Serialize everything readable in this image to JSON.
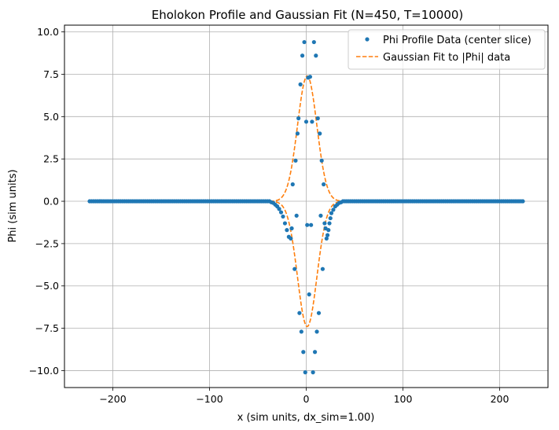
{
  "chart_data": {
    "type": "scatter",
    "title": "Eholokon Profile and Gaussian Fit (N=450, T=10000)",
    "xlabel": "x (sim units, dx_sim=1.00)",
    "ylabel": "Phi (sim units)",
    "xlim": [
      -250,
      250
    ],
    "ylim": [
      -11,
      10.4
    ],
    "xticks": [
      -200,
      -100,
      0,
      100,
      200
    ],
    "yticks": [
      -10.0,
      -7.5,
      -5.0,
      -2.5,
      0.0,
      2.5,
      5.0,
      7.5,
      10.0
    ],
    "grid": true,
    "legend_position": "upper-right",
    "colors": {
      "data": "#1f77b4",
      "fit": "#ff7f0e",
      "grid": "#b0b0b0"
    },
    "series": [
      {
        "name": "Phi Profile Data (center slice)",
        "kind": "points",
        "x_range": [
          -224,
          224
        ],
        "zero_region": "|x| >= 38",
        "points": [
          [
            -36,
            -0.06
          ],
          [
            -34,
            -0.1
          ],
          [
            -32,
            -0.2
          ],
          [
            -30,
            -0.3
          ],
          [
            -28,
            -0.45
          ],
          [
            -26,
            -0.65
          ],
          [
            -24,
            -0.9
          ],
          [
            -22,
            -1.3
          ],
          [
            -20,
            -1.7
          ],
          [
            -18,
            -2.1
          ],
          [
            -16,
            -2.2
          ],
          [
            -15,
            -1.6
          ],
          [
            -14,
            1.0
          ],
          [
            -12,
            -4.0
          ],
          [
            -11,
            2.4
          ],
          [
            -10,
            -0.85
          ],
          [
            -9,
            4.0
          ],
          [
            -8,
            4.9
          ],
          [
            -7,
            -6.6
          ],
          [
            -6,
            6.9
          ],
          [
            -5,
            -7.7
          ],
          [
            -4,
            8.6
          ],
          [
            -3,
            -8.9
          ],
          [
            -2,
            9.4
          ],
          [
            -1,
            -10.1
          ],
          [
            0,
            4.7
          ],
          [
            1,
            -1.4
          ],
          [
            2,
            7.3
          ],
          [
            3,
            -5.5
          ],
          [
            4,
            7.35
          ],
          [
            5,
            -1.4
          ],
          [
            6,
            4.7
          ],
          [
            7,
            -10.1
          ],
          [
            8,
            9.4
          ],
          [
            9,
            -8.9
          ],
          [
            10,
            8.6
          ],
          [
            11,
            -7.7
          ],
          [
            12,
            4.9
          ],
          [
            13,
            -6.6
          ],
          [
            14,
            4.0
          ],
          [
            15,
            -0.85
          ],
          [
            16,
            2.4
          ],
          [
            17,
            -4.0
          ],
          [
            18,
            1.0
          ],
          [
            19,
            -1.3
          ],
          [
            20,
            -1.6
          ],
          [
            21,
            -2.2
          ],
          [
            22,
            -2.0
          ],
          [
            23,
            -1.7
          ],
          [
            24,
            -1.3
          ],
          [
            25,
            -1.0
          ],
          [
            26,
            -0.7
          ],
          [
            28,
            -0.5
          ],
          [
            30,
            -0.3
          ],
          [
            32,
            -0.2
          ],
          [
            34,
            -0.1
          ],
          [
            36,
            -0.06
          ]
        ]
      },
      {
        "name": "Gaussian Fit to |Phi| data",
        "kind": "dashed-line",
        "amplitude": 7.4,
        "center": 1,
        "sigma": 10
      }
    ]
  }
}
